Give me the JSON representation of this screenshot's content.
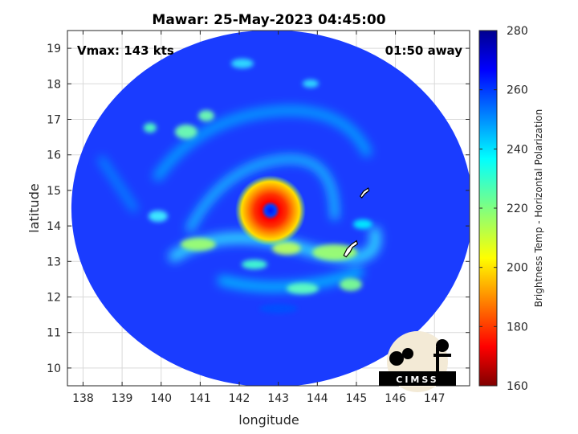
{
  "chart_data": {
    "type": "heatmap",
    "title": "Mawar: 25-May-2023 04:45:00",
    "xlabel": "longitude",
    "ylabel": "latitude",
    "xlim": [
      137.6,
      147.9
    ],
    "ylim": [
      9.5,
      19.5
    ],
    "xticks": [
      138,
      139,
      140,
      141,
      142,
      143,
      144,
      145,
      146,
      147
    ],
    "yticks": [
      10,
      11,
      12,
      13,
      14,
      15,
      16,
      17,
      18,
      19
    ],
    "grid": true,
    "annotations": {
      "vmax": "Vmax: 143 kts",
      "time_away": "01:50 away"
    },
    "colorbar": {
      "label": "Brightness Temp - Horizontal Polarization",
      "range": [
        160,
        280
      ],
      "ticks": [
        160,
        180,
        200,
        220,
        240,
        260,
        280
      ],
      "colormap": "jet"
    },
    "storm": {
      "center_lon": 142.8,
      "center_lat": 14.5,
      "eye_temp": 260,
      "eyewall_min_temp": 175,
      "background_temp": 265
    },
    "swath_center": [
      142.8,
      14.4
    ],
    "logo": "CIMSS"
  }
}
